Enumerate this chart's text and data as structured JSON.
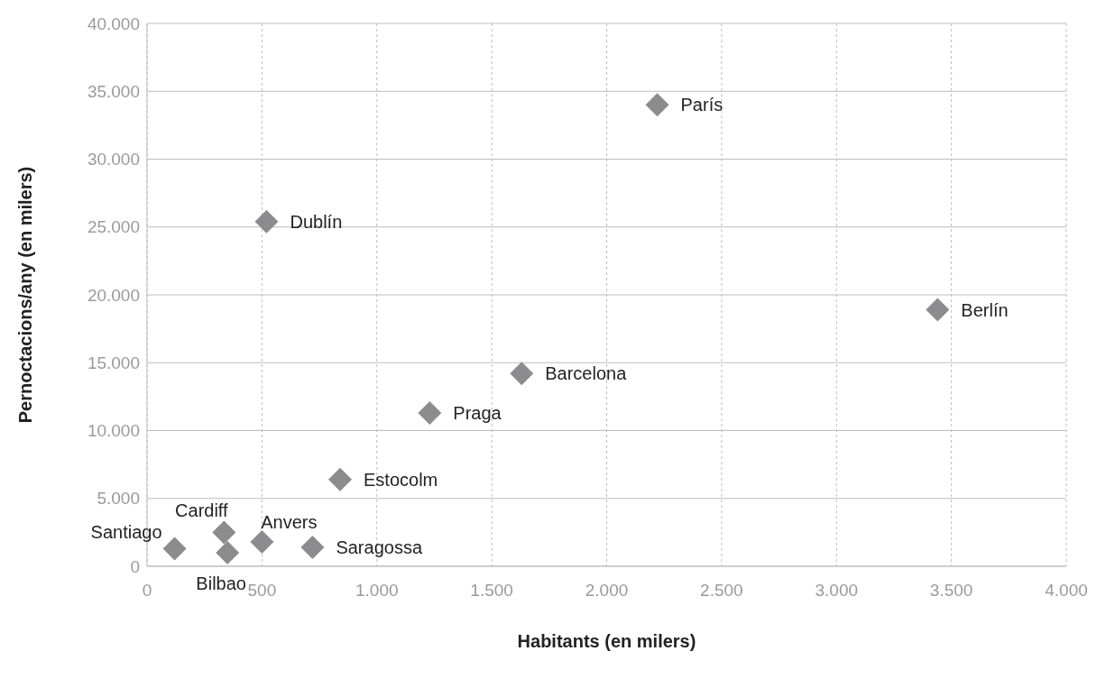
{
  "chart_data": {
    "type": "scatter",
    "xlabel": "Habitants (en milers)",
    "ylabel": "Pernoctacions/any (en milers)",
    "x": [
      2220,
      520,
      3440,
      1630,
      1230,
      840,
      335,
      500,
      720,
      120,
      350
    ],
    "values": [
      34000,
      25400,
      18900,
      14200,
      11300,
      6400,
      2500,
      1800,
      1400,
      1300,
      1000
    ],
    "color": "#8c8c8e",
    "marker": "diamond",
    "grid": true,
    "xlim": [
      0,
      4000
    ],
    "xticks": [
      0,
      500,
      {
        "value": 1000,
        "label": "1.000"
      },
      {
        "value": 1500,
        "label": "1.500"
      },
      {
        "value": 2000,
        "label": "2.000"
      },
      {
        "value": 2500,
        "label": "2.500"
      },
      {
        "value": 3000,
        "label": "3.000"
      },
      {
        "value": 3500,
        "label": "3.500"
      },
      {
        "value": 4000,
        "label": "4.000"
      }
    ],
    "ylim": [
      0,
      40000
    ],
    "yticks": [
      0,
      {
        "value": 5000,
        "label": "5.000"
      },
      {
        "value": 10000,
        "label": "10.000"
      },
      {
        "value": 15000,
        "label": "15.000"
      },
      {
        "value": 20000,
        "label": "20.000"
      },
      {
        "value": 25000,
        "label": "25.000"
      },
      {
        "value": 30000,
        "label": "30.000"
      },
      {
        "value": 35000,
        "label": "35.000"
      },
      {
        "value": 40000,
        "label": "40.000"
      }
    ],
    "annotations": [
      {
        "text": "París",
        "x": 2220,
        "y": 34000
      },
      {
        "text": "Dublín",
        "x": 520,
        "y": 25400
      },
      {
        "text": "Berlín",
        "x": 3440,
        "y": 18900
      },
      {
        "text": "Barcelona",
        "x": 1630,
        "y": 14200
      },
      {
        "text": "Praga",
        "x": 1230,
        "y": 11300
      },
      {
        "text": "Estocolm",
        "x": 840,
        "y": 6400
      },
      {
        "text": "Cardiff",
        "x": 335,
        "y": 2500
      },
      {
        "text": "Anvers",
        "x": 500,
        "y": 1800
      },
      {
        "text": "Saragossa",
        "x": 720,
        "y": 1400
      },
      {
        "text": "Santiago",
        "x": 120,
        "y": 1300
      },
      {
        "text": "Bilbao",
        "x": 350,
        "y": 1000
      }
    ]
  }
}
